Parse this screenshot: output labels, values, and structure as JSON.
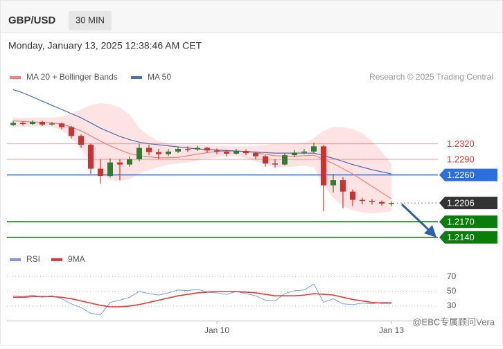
{
  "chart_data": [
    {
      "type": "candlestick",
      "title": "GBP/USD",
      "interval": "30 MIN",
      "subtitle": "Monday, January 13, 2025 12:38:46 AM CET",
      "source": "Research © 2025 Trading Central",
      "up_color": "#2f7d32",
      "down_color": "#d32f2f",
      "ylim": [
        1.2117,
        1.243
      ],
      "open": [
        1.2356,
        1.236,
        1.2358,
        1.2362,
        1.2357,
        1.2359,
        1.2352,
        1.2335,
        1.2318,
        1.2272,
        1.2258,
        1.2284,
        1.228,
        1.229,
        1.2312,
        1.2304,
        1.23,
        1.2305,
        1.231,
        1.2309,
        1.2312,
        1.2307,
        1.2305,
        1.2301,
        1.2306,
        1.2302,
        1.2296,
        1.2282,
        1.228,
        1.2298,
        1.2303,
        1.2305,
        1.2315,
        1.224,
        1.225,
        1.2228,
        1.2212,
        1.221,
        1.2208,
        1.2205
      ],
      "high": [
        1.2364,
        1.2363,
        1.2365,
        1.2364,
        1.2362,
        1.2361,
        1.2354,
        1.2338,
        1.232,
        1.229,
        1.2292,
        1.229,
        1.2296,
        1.232,
        1.2318,
        1.231,
        1.231,
        1.2314,
        1.2315,
        1.2316,
        1.2314,
        1.2311,
        1.2308,
        1.231,
        1.2309,
        1.2305,
        1.2298,
        1.229,
        1.2302,
        1.2308,
        1.231,
        1.2322,
        1.2318,
        1.2262,
        1.2256,
        1.2232,
        1.2216,
        1.2214,
        1.2211,
        1.2209
      ],
      "low": [
        1.2354,
        1.2355,
        1.2356,
        1.2354,
        1.2355,
        1.2348,
        1.233,
        1.2312,
        1.2262,
        1.2243,
        1.2255,
        1.225,
        1.2276,
        1.2286,
        1.2298,
        1.229,
        1.2296,
        1.2302,
        1.2304,
        1.2306,
        1.2303,
        1.23,
        1.2296,
        1.2299,
        1.2298,
        1.229,
        1.2276,
        1.2274,
        1.2278,
        1.2294,
        1.23,
        1.2302,
        1.219,
        1.2226,
        1.2196,
        1.22,
        1.2204,
        1.2203,
        1.2201,
        1.22
      ],
      "close": [
        1.236,
        1.2358,
        1.2362,
        1.2357,
        1.2359,
        1.2352,
        1.2335,
        1.2318,
        1.2272,
        1.2258,
        1.2284,
        1.228,
        1.229,
        1.2312,
        1.2304,
        1.23,
        1.2305,
        1.231,
        1.2309,
        1.2312,
        1.2307,
        1.2305,
        1.2301,
        1.2306,
        1.2302,
        1.2296,
        1.2282,
        1.228,
        1.2298,
        1.2303,
        1.2305,
        1.2315,
        1.224,
        1.225,
        1.2228,
        1.2212,
        1.221,
        1.2208,
        1.2205,
        1.2206
      ],
      "overlays": [
        {
          "name": "MA 20 + Bollinger Bands",
          "color": "#f08080",
          "band_color": "#fde3e3",
          "values": [
            1.2364,
            1.2363,
            1.2362,
            1.2361,
            1.236,
            1.2358,
            1.2352,
            1.2345,
            1.2335,
            1.2325,
            1.2316,
            1.2308,
            1.2301,
            1.2297,
            1.2295,
            1.2293,
            1.2293,
            1.2294,
            1.2297,
            1.23,
            1.2303,
            1.2305,
            1.2306,
            1.2306,
            1.2305,
            1.2303,
            1.23,
            1.2297,
            1.2296,
            1.2296,
            1.2297,
            1.2298,
            1.229,
            1.2282,
            1.2272,
            1.2262,
            1.225,
            1.2238,
            1.2226,
            1.2214
          ],
          "upper": [
            1.237,
            1.237,
            1.237,
            1.237,
            1.237,
            1.2372,
            1.2378,
            1.2386,
            1.2394,
            1.2398,
            1.2396,
            1.239,
            1.2376,
            1.235,
            1.2335,
            1.2325,
            1.232,
            1.2318,
            1.2318,
            1.2318,
            1.2317,
            1.2316,
            1.2316,
            1.2315,
            1.2315,
            1.2316,
            1.2318,
            1.232,
            1.232,
            1.232,
            1.2322,
            1.233,
            1.2345,
            1.2352,
            1.2352,
            1.2348,
            1.234,
            1.2325,
            1.2305,
            1.228
          ],
          "lower": [
            1.2352,
            1.2352,
            1.2353,
            1.2353,
            1.2352,
            1.2346,
            1.233,
            1.231,
            1.2285,
            1.2262,
            1.225,
            1.2248,
            1.2252,
            1.2262,
            1.227,
            1.2275,
            1.228,
            1.2282,
            1.2284,
            1.2288,
            1.2292,
            1.2294,
            1.2296,
            1.2296,
            1.2292,
            1.2286,
            1.228,
            1.2276,
            1.2275,
            1.2276,
            1.2278,
            1.2275,
            1.224,
            1.2215,
            1.22,
            1.2192,
            1.2188,
            1.2186,
            1.2188,
            1.219
          ]
        },
        {
          "name": "MA 50",
          "color": "#4a6fb5",
          "values": [
            1.2424,
            1.2418,
            1.241,
            1.2402,
            1.2394,
            1.2386,
            1.2378,
            1.237,
            1.236,
            1.235,
            1.2342,
            1.2334,
            1.2328,
            1.2323,
            1.232,
            1.2318,
            1.2316,
            1.2314,
            1.2312,
            1.231,
            1.2309,
            1.2308,
            1.2307,
            1.2306,
            1.2305,
            1.2304,
            1.2303,
            1.2302,
            1.2302,
            1.2302,
            1.2302,
            1.2302,
            1.2297,
            1.2292,
            1.2286,
            1.228,
            1.2275,
            1.227,
            1.2266,
            1.2262
          ]
        }
      ],
      "levels": [
        {
          "value": 1.232,
          "label": "1.2320",
          "color": "#e53935",
          "line": "solid",
          "label_style": "text"
        },
        {
          "value": 1.229,
          "label": "1.2290",
          "color": "#e53935",
          "line": "solid",
          "label_style": "text"
        },
        {
          "value": 1.226,
          "label": "1.2260",
          "color": "#2a6fdb",
          "line": "solid",
          "label_style": "box"
        },
        {
          "value": 1.2206,
          "label": "1.2206",
          "color": "#333333",
          "line": "dotted",
          "label_style": "box"
        },
        {
          "value": 1.217,
          "label": "1.2170",
          "color": "#0a7d0a",
          "line": "solid",
          "label_style": "box"
        },
        {
          "value": 1.214,
          "label": "1.2140",
          "color": "#0a7d0a",
          "line": "solid",
          "label_style": "box"
        }
      ],
      "watermark": "@EBC专属顾问Vera"
    },
    {
      "type": "line",
      "categories": [
        null,
        null,
        null,
        null,
        null,
        null,
        null,
        null,
        null,
        null,
        null,
        null,
        null,
        null,
        null,
        null,
        null,
        null,
        null,
        null,
        null,
        "Jan 10",
        null,
        null,
        null,
        null,
        null,
        null,
        null,
        null,
        null,
        null,
        null,
        null,
        null,
        null,
        null,
        null,
        null,
        "Jan 13"
      ],
      "ylim": [
        11,
        84
      ],
      "yticks": [
        30,
        50,
        70
      ],
      "grid": true,
      "series": [
        {
          "name": "RSI",
          "color": "#7b9be6",
          "values": [
            44,
            43,
            45,
            42,
            44,
            40,
            33,
            28,
            20,
            18,
            35,
            38,
            42,
            50,
            47,
            45,
            48,
            52,
            51,
            53,
            49,
            48,
            46,
            50,
            47,
            44,
            38,
            37,
            47,
            51,
            52,
            60,
            35,
            40,
            33,
            32,
            34,
            33,
            35,
            35
          ]
        },
        {
          "name": "9MA",
          "color": "#e53935",
          "values": [
            42,
            42,
            43,
            43,
            43,
            42,
            40,
            37,
            34,
            31,
            29,
            29,
            30,
            32,
            35,
            38,
            41,
            44,
            46,
            48,
            49,
            50,
            50,
            50,
            49,
            48,
            46,
            44,
            44,
            44,
            45,
            47,
            46,
            45,
            42,
            39,
            37,
            35,
            34,
            34
          ]
        }
      ]
    }
  ]
}
